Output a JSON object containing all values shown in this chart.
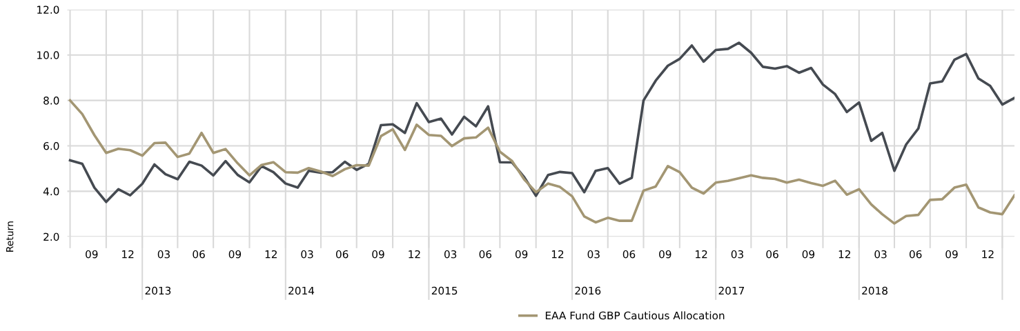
{
  "chart_data": {
    "type": "line",
    "ylabel": "Return",
    "x": [
      "2012-07",
      "2012-08",
      "2012-09",
      "2012-10",
      "2012-11",
      "2012-12",
      "2013-01",
      "2013-02",
      "2013-03",
      "2013-04",
      "2013-05",
      "2013-06",
      "2013-07",
      "2013-08",
      "2013-09",
      "2013-10",
      "2013-11",
      "2013-12",
      "2014-01",
      "2014-02",
      "2014-03",
      "2014-04",
      "2014-05",
      "2014-06",
      "2014-07",
      "2014-08",
      "2014-09",
      "2014-10",
      "2014-11",
      "2014-12",
      "2015-01",
      "2015-02",
      "2015-03",
      "2015-04",
      "2015-05",
      "2015-06",
      "2015-07",
      "2015-08",
      "2015-09",
      "2015-10",
      "2015-11",
      "2015-12",
      "2016-01",
      "2016-02",
      "2016-03",
      "2016-04",
      "2016-05",
      "2016-06",
      "2016-07",
      "2016-08",
      "2016-09",
      "2016-10",
      "2016-11",
      "2016-12",
      "2017-01",
      "2017-02",
      "2017-03",
      "2017-04",
      "2017-05",
      "2017-06",
      "2017-07",
      "2017-08",
      "2017-09",
      "2017-10",
      "2017-11",
      "2017-12",
      "2018-01",
      "2018-02",
      "2018-03",
      "2018-04",
      "2018-05",
      "2018-06",
      "2018-07",
      "2018-08",
      "2018-09",
      "2018-10",
      "2018-11",
      "2018-12",
      "2019-01",
      "2019-02"
    ],
    "series": [
      {
        "color": "#454a51",
        "values": [
          5.36,
          5.21,
          4.16,
          3.53,
          4.09,
          3.82,
          4.33,
          5.18,
          4.75,
          4.53,
          5.3,
          5.13,
          4.7,
          5.33,
          4.72,
          4.39,
          5.11,
          4.84,
          4.34,
          4.16,
          4.9,
          4.82,
          4.84,
          5.3,
          4.94,
          5.21,
          6.91,
          6.95,
          6.57,
          7.88,
          7.05,
          7.2,
          6.5,
          7.28,
          6.86,
          7.74,
          5.28,
          5.27,
          4.62,
          3.8,
          4.72,
          4.85,
          4.8,
          3.96,
          4.9,
          5.02,
          4.33,
          4.59,
          8.0,
          8.87,
          9.53,
          9.83,
          10.42,
          9.71,
          10.22,
          10.27,
          10.54,
          10.1,
          9.48,
          9.4,
          9.51,
          9.22,
          9.43,
          8.7,
          8.28,
          7.49,
          7.91,
          6.22,
          6.57,
          4.9,
          6.06,
          6.76,
          8.75,
          8.84,
          9.79,
          10.04,
          8.97,
          8.64,
          7.82,
          8.11
        ]
      },
      {
        "name": "EAA Fund GBP Cautious Allocation",
        "color": "#a39673",
        "values": [
          8.0,
          7.4,
          6.47,
          5.69,
          5.87,
          5.81,
          5.57,
          6.12,
          6.14,
          5.51,
          5.66,
          6.57,
          5.69,
          5.86,
          5.23,
          4.7,
          5.16,
          5.28,
          4.84,
          4.82,
          5.02,
          4.87,
          4.67,
          4.97,
          5.15,
          5.13,
          6.43,
          6.73,
          5.82,
          6.93,
          6.48,
          6.44,
          5.99,
          6.33,
          6.37,
          6.8,
          5.74,
          5.33,
          4.52,
          3.96,
          4.34,
          4.19,
          3.78,
          2.89,
          2.63,
          2.83,
          2.7,
          2.7,
          4.03,
          4.21,
          5.11,
          4.84,
          4.16,
          3.9,
          4.38,
          4.46,
          4.57,
          4.7,
          4.59,
          4.54,
          4.38,
          4.51,
          4.36,
          4.24,
          4.46,
          3.85,
          4.09,
          3.42,
          2.99,
          2.58,
          2.91,
          2.96,
          3.62,
          3.65,
          4.16,
          4.29,
          3.29,
          3.07,
          2.99,
          3.82
        ]
      }
    ],
    "xlim": [
      "2012-06-24",
      "2019-02-01"
    ],
    "xticks": [
      {
        "value": "2012-07",
        "label": null
      },
      {
        "value": "2012-08-25",
        "label": "09"
      },
      {
        "value": "2012-10",
        "label": null
      },
      {
        "value": "2012-11-25",
        "label": "12"
      },
      {
        "value": "2013-01",
        "label": null
      },
      {
        "value": "2013-02-25",
        "label": "03"
      },
      {
        "value": "2013-04",
        "label": null
      },
      {
        "value": "2013-05-25",
        "label": "06"
      },
      {
        "value": "2013-07",
        "label": null
      },
      {
        "value": "2013-08-25",
        "label": "09"
      },
      {
        "value": "2013-10",
        "label": null
      },
      {
        "value": "2013-11-25",
        "label": "12"
      },
      {
        "value": "2014-01",
        "label": null
      },
      {
        "value": "2014-02-25",
        "label": "03"
      },
      {
        "value": "2014-04",
        "label": null
      },
      {
        "value": "2014-05-25",
        "label": "06"
      },
      {
        "value": "2014-07",
        "label": null
      },
      {
        "value": "2014-08-25",
        "label": "09"
      },
      {
        "value": "2014-10",
        "label": null
      },
      {
        "value": "2014-11-25",
        "label": "12"
      },
      {
        "value": "2015-01",
        "label": null
      },
      {
        "value": "2015-02-25",
        "label": "03"
      },
      {
        "value": "2015-04",
        "label": null
      },
      {
        "value": "2015-05-25",
        "label": "06"
      },
      {
        "value": "2015-07",
        "label": null
      },
      {
        "value": "2015-08-25",
        "label": "09"
      },
      {
        "value": "2015-10",
        "label": null
      },
      {
        "value": "2015-11-25",
        "label": "12"
      },
      {
        "value": "2016-01",
        "label": null
      },
      {
        "value": "2016-02-25",
        "label": "03"
      },
      {
        "value": "2016-04",
        "label": null
      },
      {
        "value": "2016-05-25",
        "label": "06"
      },
      {
        "value": "2016-07",
        "label": null
      },
      {
        "value": "2016-08-25",
        "label": "09"
      },
      {
        "value": "2016-10",
        "label": null
      },
      {
        "value": "2016-11-25",
        "label": "12"
      },
      {
        "value": "2017-01",
        "label": null
      },
      {
        "value": "2017-02-25",
        "label": "03"
      },
      {
        "value": "2017-04",
        "label": null
      },
      {
        "value": "2017-05-25",
        "label": "06"
      },
      {
        "value": "2017-07",
        "label": null
      },
      {
        "value": "2017-08-25",
        "label": "09"
      },
      {
        "value": "2017-10",
        "label": null
      },
      {
        "value": "2017-11-25",
        "label": "12"
      },
      {
        "value": "2018-01",
        "label": null
      },
      {
        "value": "2018-02-25",
        "label": "03"
      },
      {
        "value": "2018-04",
        "label": null
      },
      {
        "value": "2018-05-25",
        "label": "06"
      },
      {
        "value": "2018-07",
        "label": null
      },
      {
        "value": "2018-08-25",
        "label": "09"
      },
      {
        "value": "2018-10",
        "label": null
      },
      {
        "value": "2018-11-25",
        "label": "12"
      },
      {
        "value": "2019-01",
        "label": null
      }
    ],
    "x2lim": [
      "2012-06-24",
      "2019-02-01"
    ],
    "x2ticks": [
      {
        "value": "2013-01",
        "label": null
      },
      {
        "value": "2013-02-10",
        "label": "2013"
      },
      {
        "value": "2014-01",
        "label": null
      },
      {
        "value": "2014-02-10",
        "label": "2014"
      },
      {
        "value": "2015-01",
        "label": null
      },
      {
        "value": "2015-02-10",
        "label": "2015"
      },
      {
        "value": "2016-01",
        "label": null
      },
      {
        "value": "2016-02-10",
        "label": "2016"
      },
      {
        "value": "2017-01",
        "label": null
      },
      {
        "value": "2017-02-10",
        "label": "2017"
      },
      {
        "value": "2018-01",
        "label": null
      },
      {
        "value": "2018-02-10",
        "label": "2018"
      },
      {
        "value": "2019-01",
        "label": null
      }
    ],
    "ylim": [
      2,
      12
    ],
    "yticks": [
      {
        "value": 2,
        "label": "2.0"
      },
      {
        "value": 4,
        "label": "4.0"
      },
      {
        "value": 6,
        "label": "6.0"
      },
      {
        "value": 8,
        "label": "8.0"
      },
      {
        "value": 10,
        "label": "10.0"
      },
      {
        "value": 12,
        "label": "12.0"
      }
    ],
    "grid": true,
    "legend": "bottom",
    "marker": "none",
    "line_style": "solid"
  }
}
